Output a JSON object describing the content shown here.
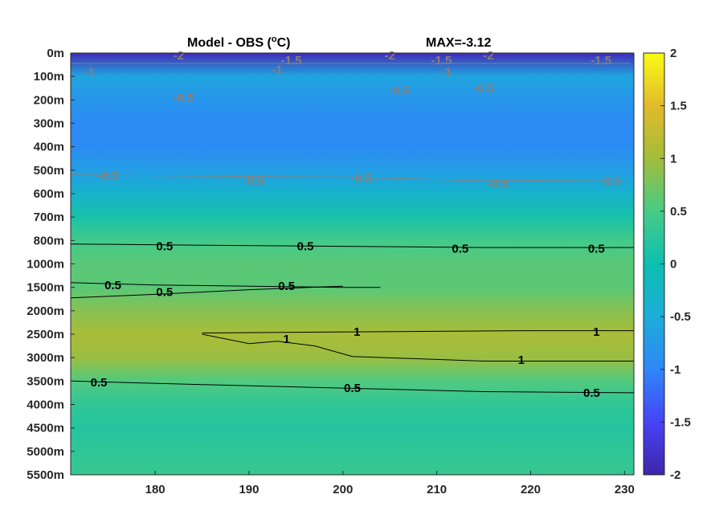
{
  "chart_data": {
    "type": "heatmap",
    "title": "Model - OBS (",
    "title_unit_sup": "o",
    "title_unit": "C)",
    "max_label": "MAX=-3.12",
    "xlabel": "",
    "ylabel": "",
    "x_ticks": [
      180,
      190,
      200,
      210,
      220,
      230
    ],
    "xlim": [
      171,
      231
    ],
    "y_tick_labels": [
      "0m",
      "100m",
      "200m",
      "300m",
      "400m",
      "500m",
      "600m",
      "700m",
      "800m",
      "1000m",
      "1500m",
      "2000m",
      "2500m",
      "3000m",
      "3500m",
      "4000m",
      "4500m",
      "5000m",
      "5500m"
    ],
    "colorbar": {
      "range": [
        -2,
        2
      ],
      "ticks": [
        "2",
        "1.5",
        "1",
        "0.5",
        "0",
        "-0.5",
        "-1",
        "-1.5",
        "-2"
      ]
    },
    "colormap": [
      "#3e26a8",
      "#4743f8",
      "#2e87f7",
      "#1cadd9",
      "#0cbfb0",
      "#48cb86",
      "#a3bd3a",
      "#e3ba2a",
      "#f9fb15"
    ],
    "profile": [
      {
        "label": "0m",
        "value": -1.9
      },
      {
        "label": "100m",
        "value": -0.6
      },
      {
        "label": "200m",
        "value": -0.8
      },
      {
        "label": "300m",
        "value": -0.95
      },
      {
        "label": "400m",
        "value": -0.95
      },
      {
        "label": "500m",
        "value": -0.7
      },
      {
        "label": "600m",
        "value": -0.35
      },
      {
        "label": "700m",
        "value": 0.1
      },
      {
        "label": "800m",
        "value": 0.45
      },
      {
        "label": "1000m",
        "value": 0.6
      },
      {
        "label": "1500m",
        "value": 0.6
      },
      {
        "label": "2000m",
        "value": 0.85
      },
      {
        "label": "2500m",
        "value": 1.05
      },
      {
        "label": "3000m",
        "value": 0.95
      },
      {
        "label": "3500m",
        "value": 0.55
      },
      {
        "label": "4000m",
        "value": 0.3
      },
      {
        "label": "4500m",
        "value": 0.2
      },
      {
        "label": "5000m",
        "value": 0.3
      },
      {
        "label": "5500m",
        "value": 0.35
      }
    ],
    "contour_labels": [
      {
        "text": "-2",
        "x": 182.5,
        "depth_index": 0.1,
        "color": "gray"
      },
      {
        "text": "-2",
        "x": 205,
        "depth_index": 0.1,
        "color": "gray"
      },
      {
        "text": "-2",
        "x": 215.5,
        "depth_index": 0.1,
        "color": "gray"
      },
      {
        "text": "-1.5",
        "x": 194.5,
        "depth_index": 0.3,
        "color": "gray"
      },
      {
        "text": "-1.5",
        "x": 210.5,
        "depth_index": 0.3,
        "color": "gray"
      },
      {
        "text": "-1.5",
        "x": 227.5,
        "depth_index": 0.3,
        "color": "gray"
      },
      {
        "text": "-1",
        "x": 173,
        "depth_index": 0.8,
        "color": "gray"
      },
      {
        "text": "-1",
        "x": 193,
        "depth_index": 0.7,
        "color": "gray"
      },
      {
        "text": "-1",
        "x": 211,
        "depth_index": 0.8,
        "color": "gray"
      },
      {
        "text": "-0.5",
        "x": 183,
        "depth_index": 1.9,
        "color": "gray"
      },
      {
        "text": "-0.5",
        "x": 206,
        "depth_index": 1.6,
        "color": "gray"
      },
      {
        "text": "-0.5",
        "x": 215,
        "depth_index": 1.5,
        "color": "gray"
      },
      {
        "text": "-0.5",
        "x": 175,
        "depth_index": 5.25,
        "color": "gray"
      },
      {
        "text": "-0.5",
        "x": 190.5,
        "depth_index": 5.45,
        "color": "gray"
      },
      {
        "text": "-0.5",
        "x": 202,
        "depth_index": 5.35,
        "color": "gray"
      },
      {
        "text": "-0.5",
        "x": 216.5,
        "depth_index": 5.55,
        "color": "gray"
      },
      {
        "text": "-0.5",
        "x": 228.5,
        "depth_index": 5.45,
        "color": "gray"
      },
      {
        "text": "0.5",
        "x": 181,
        "depth_index": 8.25,
        "color": "black"
      },
      {
        "text": "0.5",
        "x": 196,
        "depth_index": 8.25,
        "color": "black"
      },
      {
        "text": "0.5",
        "x": 212.5,
        "depth_index": 8.35,
        "color": "black"
      },
      {
        "text": "0.5",
        "x": 227,
        "depth_index": 8.35,
        "color": "black"
      },
      {
        "text": "0.5",
        "x": 175.5,
        "depth_index": 9.9,
        "color": "black"
      },
      {
        "text": "0.5",
        "x": 181,
        "depth_index": 10.2,
        "color": "black"
      },
      {
        "text": "0.5",
        "x": 194,
        "depth_index": 9.95,
        "color": "black"
      },
      {
        "text": "1",
        "x": 201.5,
        "depth_index": 11.9,
        "color": "black"
      },
      {
        "text": "1",
        "x": 227,
        "depth_index": 11.9,
        "color": "black"
      },
      {
        "text": "1",
        "x": 194,
        "depth_index": 12.2,
        "color": "black"
      },
      {
        "text": "1",
        "x": 219,
        "depth_index": 13.1,
        "color": "black"
      },
      {
        "text": "0.5",
        "x": 174,
        "depth_index": 14.05,
        "color": "black"
      },
      {
        "text": "0.5",
        "x": 201,
        "depth_index": 14.3,
        "color": "black"
      },
      {
        "text": "0.5",
        "x": 226.5,
        "depth_index": 14.5,
        "color": "black"
      }
    ],
    "contour_lines": [
      {
        "color": "gray",
        "points": [
          [
            171,
            5.2
          ],
          [
            185,
            5.25
          ],
          [
            200,
            5.3
          ],
          [
            215,
            5.45
          ],
          [
            231,
            5.4
          ]
        ]
      },
      {
        "color": "black",
        "points": [
          [
            171,
            8.15
          ],
          [
            185,
            8.2
          ],
          [
            200,
            8.25
          ],
          [
            215,
            8.3
          ],
          [
            231,
            8.3
          ]
        ]
      },
      {
        "color": "black",
        "points": [
          [
            171,
            9.8
          ],
          [
            180,
            9.9
          ],
          [
            190,
            9.95
          ],
          [
            200,
            10.0
          ],
          [
            204,
            10.0
          ]
        ]
      },
      {
        "color": "black",
        "points": [
          [
            171,
            10.45
          ],
          [
            180,
            10.3
          ],
          [
            190,
            10.1
          ],
          [
            200,
            9.95
          ]
        ]
      },
      {
        "color": "black",
        "points": [
          [
            185,
            11.95
          ],
          [
            201,
            11.9
          ],
          [
            220,
            11.85
          ],
          [
            231,
            11.85
          ]
        ]
      },
      {
        "color": "black",
        "points": [
          [
            185,
            12.0
          ],
          [
            190,
            12.4
          ],
          [
            193,
            12.3
          ],
          [
            197,
            12.5
          ],
          [
            201,
            12.95
          ],
          [
            215,
            13.15
          ],
          [
            231,
            13.15
          ]
        ]
      },
      {
        "color": "black",
        "points": [
          [
            171,
            14.0
          ],
          [
            185,
            14.15
          ],
          [
            200,
            14.3
          ],
          [
            215,
            14.45
          ],
          [
            231,
            14.5
          ]
        ]
      }
    ]
  }
}
